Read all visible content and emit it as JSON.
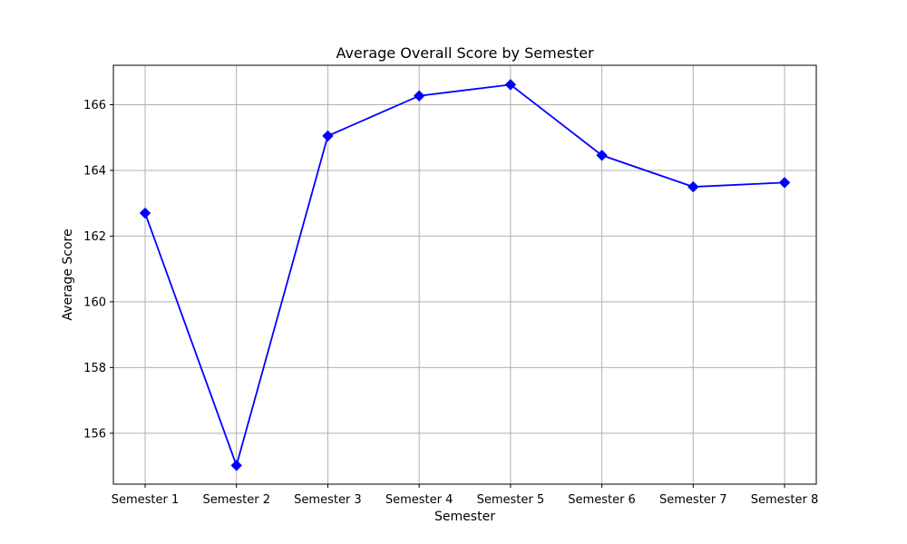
{
  "chart_data": {
    "type": "line",
    "title": "Average Overall Score by Semester",
    "xlabel": "Semester",
    "ylabel": "Average Score",
    "categories": [
      "Semester 1",
      "Semester 2",
      "Semester 3",
      "Semester 4",
      "Semester 5",
      "Semester 6",
      "Semester 7",
      "Semester 8"
    ],
    "series": [
      {
        "values": [
          162.7,
          155.02,
          165.05,
          166.27,
          166.61,
          164.46,
          163.5,
          163.63
        ]
      }
    ],
    "ylim": [
      154.45,
      167.2
    ],
    "yticks": [
      156,
      158,
      160,
      162,
      164,
      166
    ],
    "grid": true,
    "marker": "diamond",
    "line_color": "#0000ff"
  }
}
